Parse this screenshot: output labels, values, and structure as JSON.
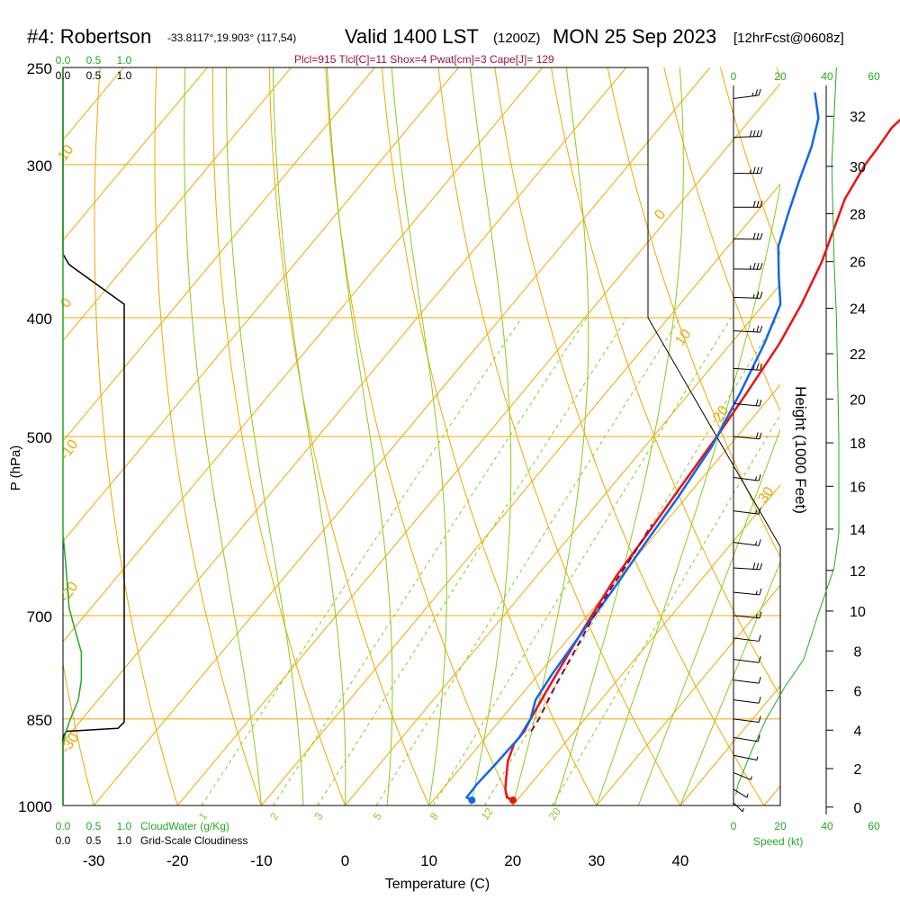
{
  "header": {
    "station": "#4: Robertson",
    "coords": "-33.8117°,19.903° (117,54)",
    "valid": "Valid 1400 LST",
    "init": "(1200Z)",
    "date": "MON 25 Sep 2023",
    "fcst": "[12hrFcst@0608z]"
  },
  "params": "Plcl=915 Tlcl[C]=11 Shox=4 Pwat[cm]=3 Cape[J]= 129",
  "colors": {
    "temp": "#ee1111",
    "dew": "#1166ee",
    "parcel": "#800060",
    "isotherm": "#f0a800",
    "mixing": "#88cc22",
    "cloudwater": "#22aa22",
    "params_text": "#a01040"
  },
  "chart_data": {
    "type": "line",
    "title": "#4: Robertson  Valid 1400 LST (1200Z) MON 25 Sep 2023 [12hrFcst@0608z]",
    "xlabel": "Temperature (C)",
    "ylabel": "P (hPa)",
    "y2label": "Height (1000 Feet)",
    "xlim": [
      -35,
      45
    ],
    "ylim": [
      1000,
      250
    ],
    "yscale": "log",
    "x_ticks": [
      -30,
      -20,
      -10,
      0,
      10,
      20,
      30,
      40
    ],
    "p_ticks": [
      250,
      300,
      400,
      500,
      700,
      850,
      1000
    ],
    "height_ticks": [
      0,
      2,
      4,
      6,
      8,
      10,
      12,
      14,
      16,
      18,
      20,
      22,
      24,
      26,
      28,
      30,
      32
    ],
    "height_tick_pressures": [
      1003,
      933,
      868,
      806,
      748,
      694,
      643,
      595,
      549,
      506,
      466,
      428,
      393,
      360,
      329,
      301,
      274
    ],
    "isotherm_labels": [
      10,
      0,
      -10,
      -20,
      -30,
      0,
      10,
      20,
      30
    ],
    "mixing_ratio_labels": [
      1,
      2,
      3,
      5,
      8,
      12,
      20
    ],
    "cloud_axis_labels": [
      "0.0",
      "0.5",
      "1.0"
    ],
    "cloudwater_label": "CloudWater (g/Kg)",
    "cloudiness_label": "Grid-Scale Cloudiness",
    "speed_label": "Speed (kt)",
    "speed_ticks": [
      0,
      20,
      40,
      60
    ],
    "series": [
      {
        "name": "Temperature",
        "points": [
          [
            19.5,
            990
          ],
          [
            18.5,
            985
          ],
          [
            17.5,
            970
          ],
          [
            16.5,
            950
          ],
          [
            15,
            920
          ],
          [
            14,
            890
          ],
          [
            14,
            870
          ],
          [
            13.5,
            850
          ],
          [
            12.5,
            800
          ],
          [
            11.5,
            750
          ],
          [
            10.5,
            700
          ],
          [
            9.5,
            650
          ],
          [
            9,
            600
          ],
          [
            8.3,
            550
          ],
          [
            7.6,
            500
          ],
          [
            6.8,
            460
          ],
          [
            5.8,
            420
          ],
          [
            4.5,
            390
          ],
          [
            2.7,
            360
          ],
          [
            1,
            340
          ],
          [
            -0.8,
            320
          ],
          [
            -1.8,
            300
          ],
          [
            -2,
            290
          ],
          [
            -2.3,
            280
          ],
          [
            -1.8,
            270
          ],
          [
            -1.4,
            260
          ]
        ]
      },
      {
        "name": "Dew point",
        "points": [
          [
            14.6,
            990
          ],
          [
            13.7,
            985
          ],
          [
            13.6,
            960
          ],
          [
            13.8,
            930
          ],
          [
            14,
            880
          ],
          [
            13.5,
            850
          ],
          [
            12.2,
            820
          ],
          [
            11.6,
            780
          ],
          [
            11,
            720
          ],
          [
            10.4,
            660
          ],
          [
            9.8,
            620
          ],
          [
            9,
            560
          ],
          [
            8,
            510
          ],
          [
            6,
            460
          ],
          [
            4,
            420
          ],
          [
            2,
            390
          ],
          [
            -1,
            370
          ],
          [
            -4,
            350
          ],
          [
            -6,
            330
          ],
          [
            -8,
            310
          ],
          [
            -10,
            290
          ],
          [
            -12,
            275
          ],
          [
            -15,
            262
          ]
        ]
      },
      {
        "name": "Parcel",
        "points": [
          [
            14.8,
            870
          ],
          [
            14.5,
            850
          ],
          [
            13.2,
            800
          ],
          [
            11.8,
            740
          ],
          [
            10.8,
            700
          ],
          [
            10,
            660
          ],
          [
            9.3,
            620
          ],
          [
            8.6,
            590
          ]
        ]
      },
      {
        "name": "Cloudiness",
        "points": [
          [
            0,
            250
          ],
          [
            0,
            355
          ],
          [
            0.1,
            362
          ],
          [
            1,
            390
          ],
          [
            1,
            855
          ],
          [
            0.9,
            865
          ],
          [
            0.05,
            870
          ],
          [
            0,
            880
          ],
          [
            0,
            1000
          ]
        ]
      },
      {
        "name": "CloudWater",
        "points": [
          [
            0,
            250
          ],
          [
            0,
            600
          ],
          [
            0.05,
            640
          ],
          [
            0.1,
            690
          ],
          [
            0.2,
            720
          ],
          [
            0.3,
            750
          ],
          [
            0.3,
            790
          ],
          [
            0.25,
            820
          ],
          [
            0.12,
            850
          ],
          [
            0.05,
            870
          ],
          [
            0,
            890
          ],
          [
            0,
            1000
          ]
        ]
      },
      {
        "name": "Speed",
        "points": [
          [
            44,
            250
          ],
          [
            42,
            300
          ],
          [
            43,
            360
          ],
          [
            44,
            400
          ],
          [
            45,
            500
          ],
          [
            45,
            600
          ],
          [
            43,
            640
          ],
          [
            36,
            700
          ],
          [
            30,
            760
          ],
          [
            22,
            800
          ],
          [
            14,
            850
          ],
          [
            8,
            900
          ],
          [
            4,
            940
          ],
          [
            2,
            960
          ],
          [
            1,
            980
          ]
        ]
      }
    ],
    "grid": true,
    "legend": "none"
  },
  "wind_barbs": {
    "labels": [
      "wind-barb"
    ],
    "points": [
      {
        "p": 265,
        "spd": 25,
        "dir": 250
      },
      {
        "p": 285,
        "spd": 40,
        "dir": 265
      },
      {
        "p": 305,
        "spd": 35,
        "dir": 270
      },
      {
        "p": 325,
        "spd": 30,
        "dir": 270
      },
      {
        "p": 345,
        "spd": 30,
        "dir": 272
      },
      {
        "p": 365,
        "spd": 35,
        "dir": 272
      },
      {
        "p": 385,
        "spd": 25,
        "dir": 275
      },
      {
        "p": 410,
        "spd": 25,
        "dir": 278
      },
      {
        "p": 440,
        "spd": 25,
        "dir": 280
      },
      {
        "p": 470,
        "spd": 20,
        "dir": 285
      },
      {
        "p": 500,
        "spd": 20,
        "dir": 285
      },
      {
        "p": 540,
        "spd": 15,
        "dir": 290
      },
      {
        "p": 575,
        "spd": 15,
        "dir": 290
      },
      {
        "p": 610,
        "spd": 15,
        "dir": 290
      },
      {
        "p": 640,
        "spd": 30,
        "dir": 280
      },
      {
        "p": 670,
        "spd": 15,
        "dir": 285
      },
      {
        "p": 700,
        "spd": 15,
        "dir": 285
      },
      {
        "p": 730,
        "spd": 10,
        "dir": 290
      },
      {
        "p": 760,
        "spd": 10,
        "dir": 290
      },
      {
        "p": 790,
        "spd": 10,
        "dir": 290
      },
      {
        "p": 820,
        "spd": 10,
        "dir": 290
      },
      {
        "p": 850,
        "spd": 10,
        "dir": 290
      },
      {
        "p": 880,
        "spd": 10,
        "dir": 295
      },
      {
        "p": 910,
        "spd": 5,
        "dir": 300
      },
      {
        "p": 940,
        "spd": 5,
        "dir": 320
      },
      {
        "p": 970,
        "spd": 5,
        "dir": 330
      },
      {
        "p": 995,
        "spd": 5,
        "dir": 340
      }
    ]
  }
}
